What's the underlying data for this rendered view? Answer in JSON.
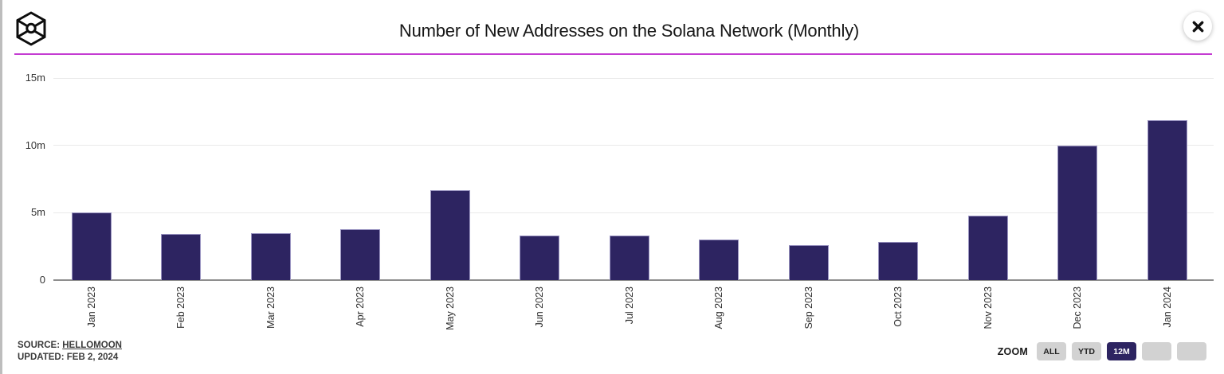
{
  "header": {
    "title": "Number of New Addresses on the Solana Network (Monthly)"
  },
  "icons": {
    "logo": "cube-wireframe-icon",
    "close": "close-x-icon"
  },
  "chart_data": {
    "type": "bar",
    "title": "Number of New Addresses on the Solana Network (Monthly)",
    "categories": [
      "Jan 2023",
      "Feb 2023",
      "Mar 2023",
      "Apr 2023",
      "May 2023",
      "Jun 2023",
      "Jul 2023",
      "Aug 2023",
      "Sep 2023",
      "Oct 2023",
      "Nov 2023",
      "Dec 2023",
      "Jan 2024"
    ],
    "values": [
      5.0,
      3.4,
      3.5,
      3.8,
      6.7,
      3.3,
      3.3,
      3.0,
      2.6,
      2.85,
      4.8,
      10.0,
      11.85
    ],
    "unit": "millions of new addresses",
    "xlabel": "",
    "ylabel": "",
    "ylim": [
      0,
      15
    ],
    "yticks": [
      {
        "label": "15m",
        "value": 15
      },
      {
        "label": "10m",
        "value": 10
      },
      {
        "label": "5m",
        "value": 5
      },
      {
        "label": "0",
        "value": 0
      }
    ],
    "grid": true,
    "legend": false,
    "bar_color": "#2d2461"
  },
  "footer": {
    "source_label": "SOURCE:",
    "source_value": "HELLOMOON",
    "updated": "UPDATED: FEB 2, 2024",
    "zoom": {
      "label": "ZOOM",
      "buttons": [
        {
          "label": "ALL",
          "active": false
        },
        {
          "label": "YTD",
          "active": false
        },
        {
          "label": "12M",
          "active": true
        },
        {
          "label": "",
          "active": false
        },
        {
          "label": "",
          "active": false
        }
      ]
    }
  },
  "colors": {
    "accent_divider": "#c43cd2",
    "bar": "#2d2461",
    "active_button_bg": "#2d2461",
    "button_bg": "#d2d2d2",
    "gridline": "#e9e9e9",
    "axis_line": "#8e8e8e"
  }
}
